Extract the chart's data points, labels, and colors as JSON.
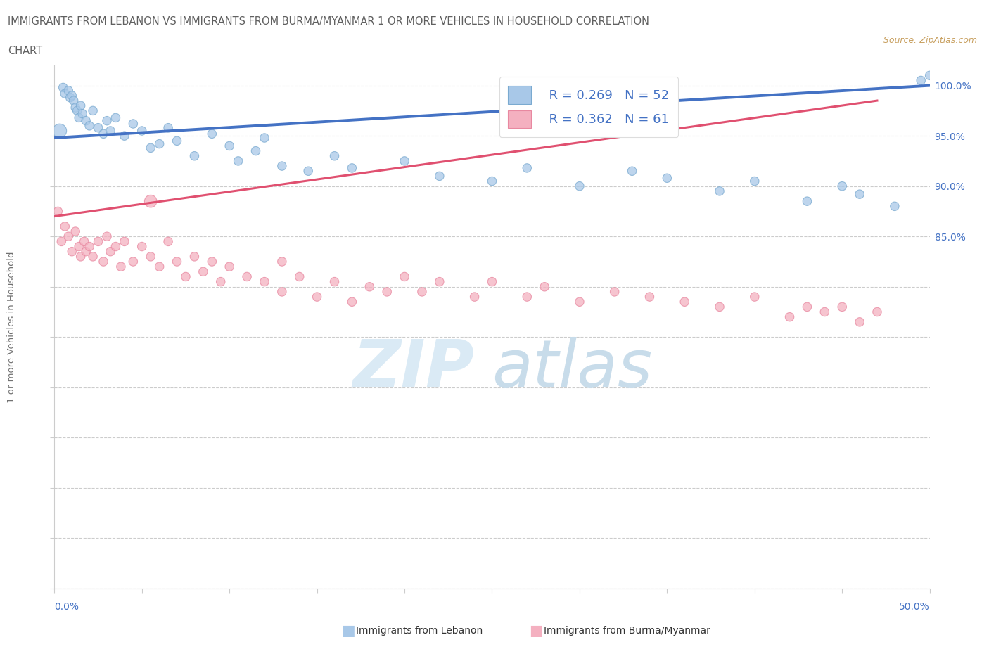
{
  "title_line1": "IMMIGRANTS FROM LEBANON VS IMMIGRANTS FROM BURMA/MYANMAR 1 OR MORE VEHICLES IN HOUSEHOLD CORRELATION",
  "title_line2": "CHART",
  "source_text": "Source: ZipAtlas.com",
  "legend_blue_label": "Immigrants from Lebanon",
  "legend_pink_label": "Immigrants from Burma/Myanmar",
  "legend_r_blue": "R = 0.269",
  "legend_n_blue": "N = 52",
  "legend_r_pink": "R = 0.362",
  "legend_n_pink": "N = 61",
  "color_blue_face": "#a8c8e8",
  "color_blue_edge": "#7aaad0",
  "color_pink_face": "#f4b0c0",
  "color_pink_edge": "#e888a0",
  "color_line_blue": "#4472c4",
  "color_line_pink": "#e05070",
  "color_text_blue": "#4472c4",
  "color_title": "#606060",
  "color_source": "#c8a060",
  "color_watermark": "#daeaf5",
  "color_grid": "#cccccc",
  "xlim": [
    0.0,
    50.0
  ],
  "ylim": [
    50.0,
    102.0
  ],
  "yticks": [
    85.0,
    90.0,
    95.0,
    100.0
  ],
  "ytick_labels": [
    "85.0%",
    "90.0%",
    "95.0%",
    "100.0%"
  ],
  "leb_line_x0": 0.0,
  "leb_line_x1": 50.0,
  "leb_line_y0": 94.8,
  "leb_line_y1": 100.0,
  "bur_line_x0": 0.0,
  "bur_line_x1": 47.0,
  "bur_line_y0": 87.0,
  "bur_line_y1": 98.5,
  "leb_x": [
    0.3,
    0.5,
    0.6,
    0.8,
    0.9,
    1.0,
    1.1,
    1.2,
    1.3,
    1.4,
    1.5,
    1.6,
    1.8,
    2.0,
    2.2,
    2.5,
    2.8,
    3.0,
    3.2,
    3.5,
    4.0,
    4.5,
    5.0,
    5.5,
    6.0,
    6.5,
    7.0,
    8.0,
    9.0,
    10.0,
    10.5,
    11.5,
    12.0,
    13.0,
    14.5,
    16.0,
    17.0,
    20.0,
    22.0,
    25.0,
    27.0,
    30.0,
    33.0,
    35.0,
    38.0,
    40.0,
    43.0,
    45.0,
    46.0,
    48.0,
    49.5,
    50.0
  ],
  "leb_y": [
    95.5,
    99.8,
    99.2,
    99.5,
    98.8,
    99.0,
    98.5,
    97.8,
    97.5,
    96.8,
    98.0,
    97.2,
    96.5,
    96.0,
    97.5,
    95.8,
    95.2,
    96.5,
    95.5,
    96.8,
    95.0,
    96.2,
    95.5,
    93.8,
    94.2,
    95.8,
    94.5,
    93.0,
    95.2,
    94.0,
    92.5,
    93.5,
    94.8,
    92.0,
    91.5,
    93.0,
    91.8,
    92.5,
    91.0,
    90.5,
    91.8,
    90.0,
    91.5,
    90.8,
    89.5,
    90.5,
    88.5,
    90.0,
    89.2,
    88.0,
    100.5,
    101.0
  ],
  "bur_x": [
    0.2,
    0.4,
    0.6,
    0.8,
    1.0,
    1.2,
    1.4,
    1.5,
    1.7,
    1.8,
    2.0,
    2.2,
    2.5,
    2.8,
    3.0,
    3.2,
    3.5,
    3.8,
    4.0,
    4.5,
    5.0,
    5.5,
    6.0,
    6.5,
    7.0,
    7.5,
    8.0,
    8.5,
    9.0,
    9.5,
    10.0,
    11.0,
    12.0,
    13.0,
    14.0,
    15.0,
    16.0,
    17.0,
    18.0,
    19.0,
    20.0,
    21.0,
    22.0,
    24.0,
    25.0,
    27.0,
    28.0,
    30.0,
    32.0,
    34.0,
    36.0,
    38.0,
    40.0,
    42.0,
    43.0,
    44.0,
    45.0,
    46.0,
    47.0,
    13.0,
    5.5
  ],
  "bur_y": [
    87.5,
    84.5,
    86.0,
    85.0,
    83.5,
    85.5,
    84.0,
    83.0,
    84.5,
    83.5,
    84.0,
    83.0,
    84.5,
    82.5,
    85.0,
    83.5,
    84.0,
    82.0,
    84.5,
    82.5,
    84.0,
    83.0,
    82.0,
    84.5,
    82.5,
    81.0,
    83.0,
    81.5,
    82.5,
    80.5,
    82.0,
    81.0,
    80.5,
    79.5,
    81.0,
    79.0,
    80.5,
    78.5,
    80.0,
    79.5,
    81.0,
    79.5,
    80.5,
    79.0,
    80.5,
    79.0,
    80.0,
    78.5,
    79.5,
    79.0,
    78.5,
    78.0,
    79.0,
    77.0,
    78.0,
    77.5,
    78.0,
    76.5,
    77.5,
    82.5,
    88.5
  ]
}
